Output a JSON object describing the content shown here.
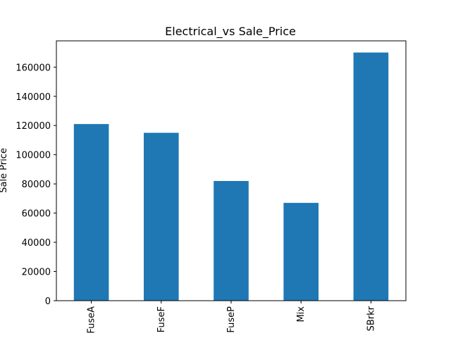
{
  "chart_data": {
    "type": "bar",
    "title": "Electrical_vs Sale_Price",
    "xlabel": "",
    "ylabel": "Sale Price",
    "categories": [
      "FuseA",
      "FuseF",
      "FuseP",
      "Mix",
      "SBrkr"
    ],
    "values": [
      121000,
      115000,
      82000,
      67000,
      170000
    ],
    "ylim": [
      0,
      178000
    ],
    "yticks": [
      0,
      20000,
      40000,
      60000,
      80000,
      100000,
      120000,
      140000,
      160000
    ],
    "bar_color": "#1f77b4",
    "grid": false
  }
}
